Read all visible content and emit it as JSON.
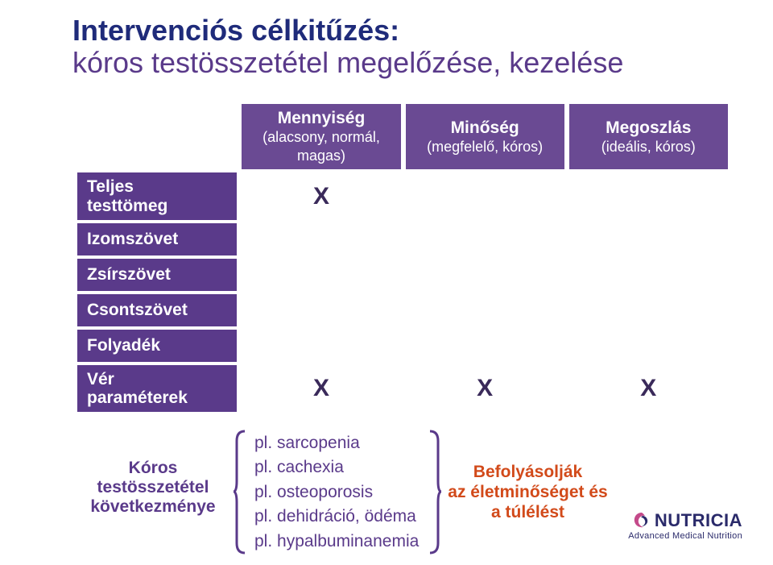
{
  "title": {
    "line1": "Intervenciós célkitűzés:",
    "line2": "kóros testösszetétel megelőzése, kezelése"
  },
  "table": {
    "columns": [
      {
        "label": "Mennyiség",
        "sub": "(alacsony, normál, magas)",
        "bg": "#6a4a93"
      },
      {
        "label": "Minőség",
        "sub": "(megfelelő, kóros)",
        "bg": "#6a4a93"
      },
      {
        "label": "Megoszlás",
        "sub": "(ideális, kóros)",
        "bg": "#6a4a93"
      }
    ],
    "rows": [
      {
        "label": "Teljes\ntesttömeg",
        "cells": [
          "X",
          "",
          ""
        ]
      },
      {
        "label": "Izomszövet",
        "cells": [
          "",
          "",
          ""
        ]
      },
      {
        "label": "Zsírszövet",
        "cells": [
          "",
          "",
          ""
        ]
      },
      {
        "label": "Csontszövet",
        "cells": [
          "",
          "",
          ""
        ]
      },
      {
        "label": "Folyadék",
        "cells": [
          "",
          "",
          ""
        ]
      },
      {
        "label": "Vér\nparaméterek",
        "cells": [
          "X",
          "X",
          "X"
        ]
      }
    ],
    "rowlabel_bg": "#5a3a8a",
    "cell_bg": "#ffffff",
    "mark_color": "#3a2a5a"
  },
  "consequences": {
    "label": "Kóros\ntestösszetétel\nkövetkezménye",
    "examples": [
      "pl. sarcopenia",
      "pl. cachexia",
      "pl. osteoporosis",
      "pl. dehidráció, ödéma",
      "pl. hypalbuminanemia"
    ],
    "bracket_color": "#5a3a8a",
    "impact": "Befolyásolják\naz életminőséget és\na túlélést",
    "impact_color": "#d24a1a"
  },
  "logo": {
    "brand": "NUTRICIA",
    "tagline": "Advanced Medical Nutrition",
    "brand_color": "#2a2a6a",
    "swirl_color": "#c44a8a"
  }
}
